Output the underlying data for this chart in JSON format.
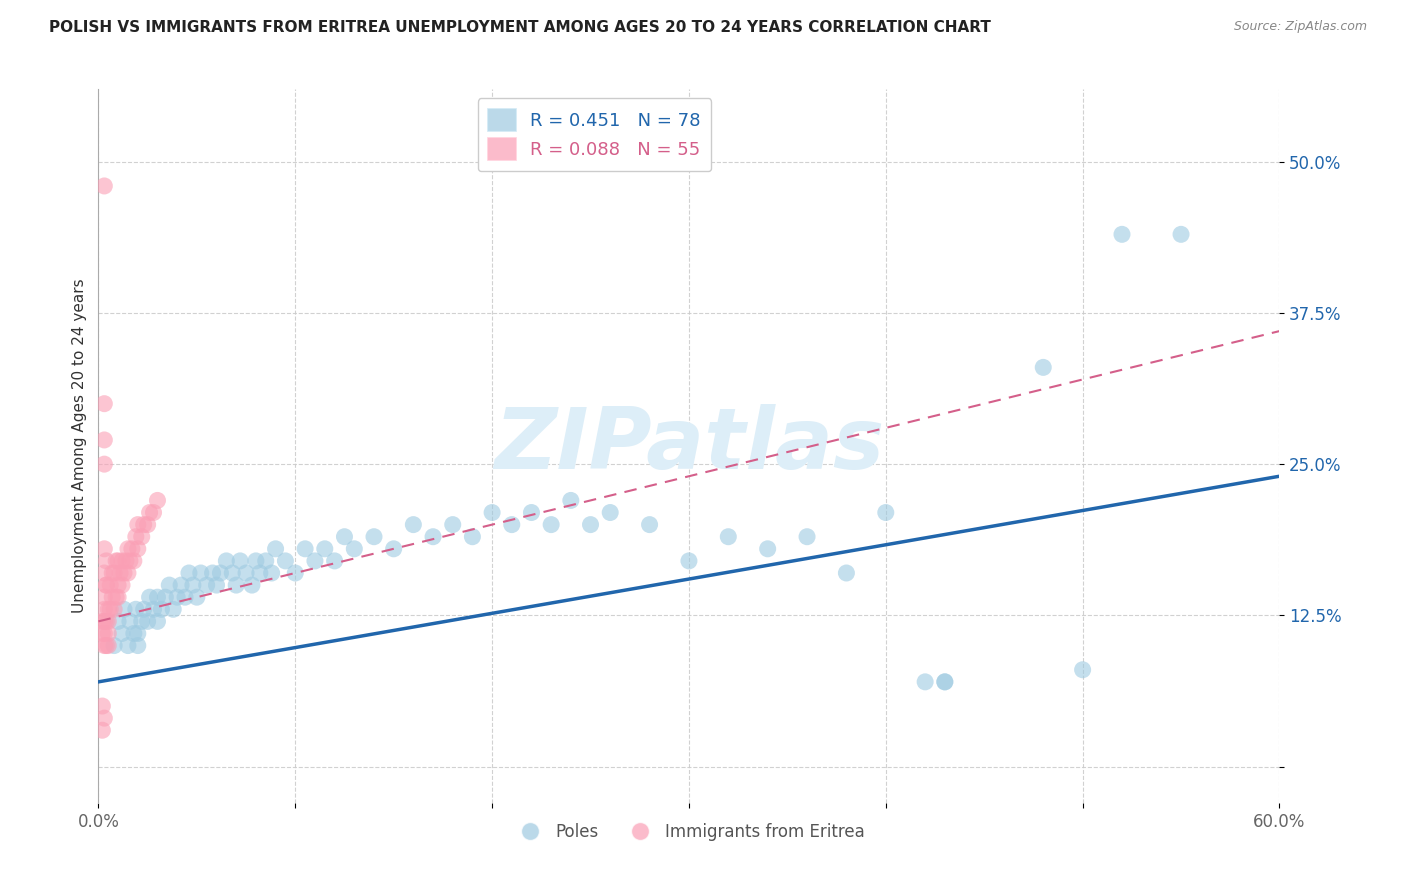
{
  "title": "POLISH VS IMMIGRANTS FROM ERITREA UNEMPLOYMENT AMONG AGES 20 TO 24 YEARS CORRELATION CHART",
  "source": "Source: ZipAtlas.com",
  "ylabel": "Unemployment Among Ages 20 to 24 years",
  "xlim": [
    0.0,
    0.6
  ],
  "ylim": [
    -0.03,
    0.56
  ],
  "yticks": [
    0.0,
    0.125,
    0.25,
    0.375,
    0.5
  ],
  "ytick_labels": [
    "",
    "12.5%",
    "25.0%",
    "37.5%",
    "50.0%"
  ],
  "xticks": [
    0.0,
    0.1,
    0.2,
    0.3,
    0.4,
    0.5,
    0.6
  ],
  "xtick_labels": [
    "0.0%",
    "",
    "",
    "",
    "",
    "",
    "60.0%"
  ],
  "legend_blue_r": "0.451",
  "legend_blue_n": "78",
  "legend_pink_r": "0.088",
  "legend_pink_n": "55",
  "blue_color": "#9ecae1",
  "pink_color": "#fa9fb5",
  "blue_line_color": "#2166ac",
  "pink_line_color": "#d45f8a",
  "watermark": "ZIPatlas",
  "background_color": "#ffffff",
  "grid_color": "#cccccc",
  "blue_line_start_y": 0.07,
  "blue_line_end_y": 0.24,
  "pink_line_start_y": 0.12,
  "pink_line_end_y": 0.36,
  "poles_x": [
    0.008,
    0.01,
    0.012,
    0.013,
    0.015,
    0.016,
    0.018,
    0.019,
    0.02,
    0.02,
    0.022,
    0.023,
    0.025,
    0.026,
    0.028,
    0.03,
    0.03,
    0.032,
    0.034,
    0.036,
    0.038,
    0.04,
    0.042,
    0.044,
    0.046,
    0.048,
    0.05,
    0.052,
    0.055,
    0.058,
    0.06,
    0.062,
    0.065,
    0.068,
    0.07,
    0.072,
    0.075,
    0.078,
    0.08,
    0.082,
    0.085,
    0.088,
    0.09,
    0.095,
    0.1,
    0.105,
    0.11,
    0.115,
    0.12,
    0.125,
    0.13,
    0.14,
    0.15,
    0.16,
    0.17,
    0.18,
    0.19,
    0.2,
    0.21,
    0.22,
    0.23,
    0.24,
    0.25,
    0.26,
    0.28,
    0.3,
    0.32,
    0.34,
    0.36,
    0.38,
    0.4,
    0.42,
    0.43,
    0.43,
    0.48,
    0.5,
    0.52,
    0.55
  ],
  "poles_y": [
    0.1,
    0.12,
    0.11,
    0.13,
    0.1,
    0.12,
    0.11,
    0.13,
    0.1,
    0.11,
    0.12,
    0.13,
    0.12,
    0.14,
    0.13,
    0.12,
    0.14,
    0.13,
    0.14,
    0.15,
    0.13,
    0.14,
    0.15,
    0.14,
    0.16,
    0.15,
    0.14,
    0.16,
    0.15,
    0.16,
    0.15,
    0.16,
    0.17,
    0.16,
    0.15,
    0.17,
    0.16,
    0.15,
    0.17,
    0.16,
    0.17,
    0.16,
    0.18,
    0.17,
    0.16,
    0.18,
    0.17,
    0.18,
    0.17,
    0.19,
    0.18,
    0.19,
    0.18,
    0.2,
    0.19,
    0.2,
    0.19,
    0.21,
    0.2,
    0.21,
    0.2,
    0.22,
    0.2,
    0.21,
    0.2,
    0.17,
    0.19,
    0.18,
    0.19,
    0.16,
    0.21,
    0.07,
    0.07,
    0.07,
    0.33,
    0.08,
    0.44,
    0.44
  ],
  "eritrea_x": [
    0.002,
    0.002,
    0.002,
    0.003,
    0.003,
    0.003,
    0.003,
    0.003,
    0.004,
    0.004,
    0.004,
    0.005,
    0.005,
    0.005,
    0.005,
    0.006,
    0.006,
    0.007,
    0.007,
    0.008,
    0.008,
    0.009,
    0.009,
    0.01,
    0.01,
    0.01,
    0.011,
    0.012,
    0.012,
    0.013,
    0.014,
    0.015,
    0.015,
    0.016,
    0.017,
    0.018,
    0.019,
    0.02,
    0.02,
    0.022,
    0.023,
    0.025,
    0.026,
    0.028,
    0.03,
    0.003,
    0.003,
    0.003,
    0.003,
    0.003,
    0.003,
    0.004,
    0.004,
    0.003,
    0.002
  ],
  "eritrea_y": [
    0.11,
    0.12,
    0.05,
    0.1,
    0.12,
    0.11,
    0.13,
    0.14,
    0.1,
    0.12,
    0.15,
    0.11,
    0.13,
    0.1,
    0.12,
    0.13,
    0.15,
    0.14,
    0.16,
    0.13,
    0.16,
    0.14,
    0.17,
    0.14,
    0.15,
    0.17,
    0.16,
    0.15,
    0.17,
    0.16,
    0.17,
    0.16,
    0.18,
    0.17,
    0.18,
    0.17,
    0.19,
    0.18,
    0.2,
    0.19,
    0.2,
    0.2,
    0.21,
    0.21,
    0.22,
    0.48,
    0.3,
    0.27,
    0.25,
    0.18,
    0.16,
    0.17,
    0.15,
    0.04,
    0.03
  ]
}
